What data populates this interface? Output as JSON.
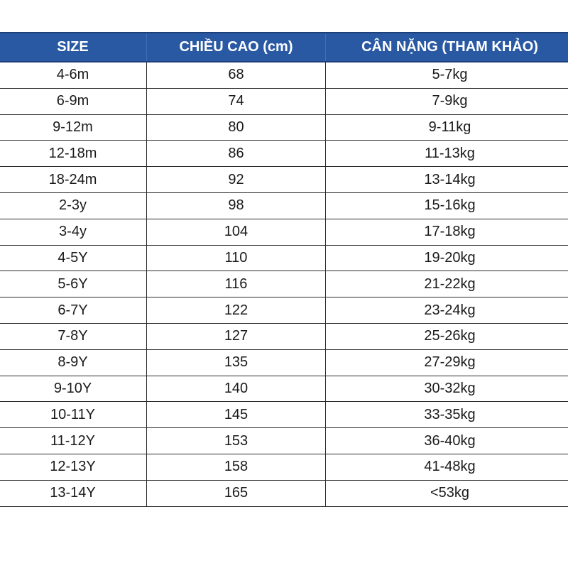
{
  "colors": {
    "header_background": "#2a59a4",
    "header_text": "#ffffff",
    "cell_text": "#1a1a1a",
    "grid_lines": "#2b2b2b"
  },
  "table": {
    "headers": [
      "SIZE",
      "CHIỀU CAO (cm)",
      "CÂN NẶNG (THAM KHẢO)"
    ],
    "rows": [
      [
        "4-6m",
        "68",
        "5-7kg"
      ],
      [
        "6-9m",
        "74",
        "7-9kg"
      ],
      [
        "9-12m",
        "80",
        "9-11kg"
      ],
      [
        "12-18m",
        "86",
        "11-13kg"
      ],
      [
        "18-24m",
        "92",
        "13-14kg"
      ],
      [
        "2-3y",
        "98",
        "15-16kg"
      ],
      [
        "3-4y",
        "104",
        "17-18kg"
      ],
      [
        "4-5Y",
        "110",
        "19-20kg"
      ],
      [
        "5-6Y",
        "116",
        "21-22kg"
      ],
      [
        "6-7Y",
        "122",
        "23-24kg"
      ],
      [
        "7-8Y",
        "127",
        "25-26kg"
      ],
      [
        "8-9Y",
        "135",
        "27-29kg"
      ],
      [
        "9-10Y",
        "140",
        "30-32kg"
      ],
      [
        "10-11Y",
        "145",
        "33-35kg"
      ],
      [
        "11-12Y",
        "153",
        "36-40kg"
      ],
      [
        "12-13Y",
        "158",
        "41-48kg"
      ],
      [
        "13-14Y",
        "165",
        "<53kg"
      ]
    ]
  }
}
